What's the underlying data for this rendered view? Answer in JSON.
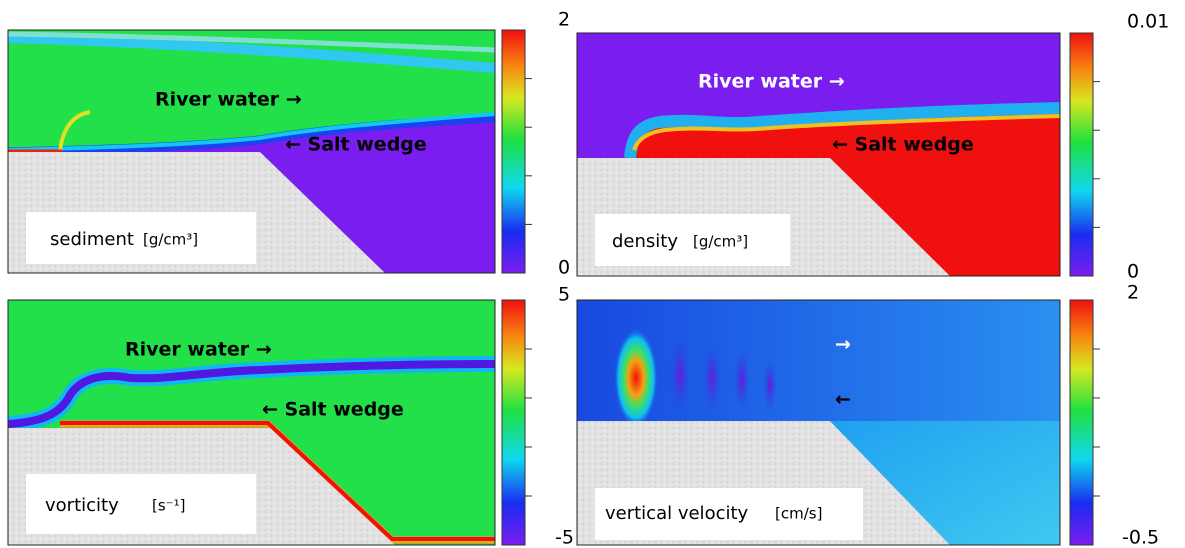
{
  "panels": [
    {
      "label": "sediment",
      "unit": "[g/cm³]",
      "colorbar": {
        "max": "2",
        "min": "0"
      },
      "annotations": [
        "River water →",
        "← Salt wedge"
      ]
    },
    {
      "label": "density",
      "unit": "[g/cm³]",
      "colorbar": {
        "max": "0.01",
        "min": "0"
      },
      "annotations": [
        "River water →",
        "← Salt wedge"
      ]
    },
    {
      "label": "vorticity",
      "unit": "[s⁻¹]",
      "colorbar": {
        "max": "5",
        "min": "-5"
      },
      "annotations": [
        "River water →",
        "← Salt wedge"
      ]
    },
    {
      "label": "vertical velocity",
      "unit": "[cm/s]",
      "colorbar": {
        "max": "2",
        "min": "-0.5"
      },
      "annotations": [
        "→",
        "←"
      ]
    }
  ]
}
